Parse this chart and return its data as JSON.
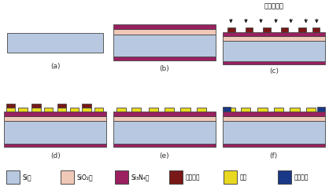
{
  "background_color": "#ffffff",
  "colors": {
    "Si": "#b8c8e0",
    "SiO2": "#f0c8b8",
    "Si3N4": "#9a2060",
    "photoresist": "#7a1818",
    "Pt": "#e8d820",
    "polyimide": "#1a3888"
  },
  "label_a": "(a)",
  "label_b": "(b)",
  "label_c": "(c)",
  "label_d": "(d)",
  "label_e": "(e)",
  "label_f": "(f)",
  "annotation": "光刻并显影",
  "legend_items": [
    {
      "text": "Si；",
      "color": "#b8c8e0"
    },
    {
      "text": "SiO₂；",
      "color": "#f0c8b8"
    },
    {
      "text": "Si₃N₄；",
      "color": "#9a2060"
    },
    {
      "text": "光刻胶；",
      "color": "#7a1818"
    },
    {
      "text": "铂；",
      "color": "#e8d820"
    },
    {
      "text": "聊酰亚胺",
      "color": "#1a3888"
    }
  ]
}
